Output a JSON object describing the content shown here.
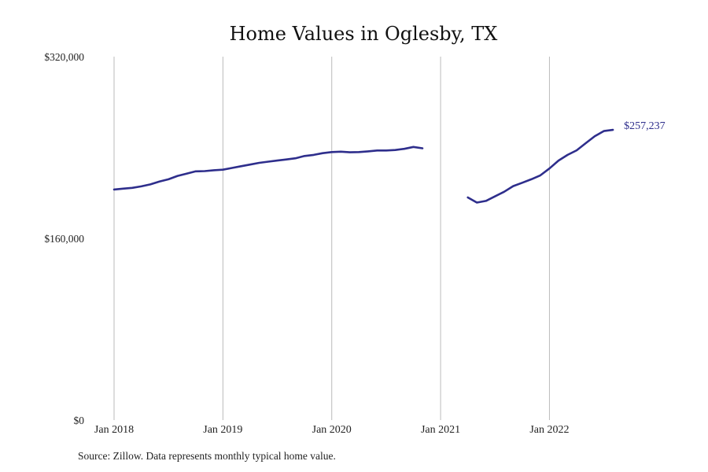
{
  "footer": {
    "source": "Source: Zillow. Data represents monthly typical home value."
  },
  "colors": {
    "line": "#2e2e8c",
    "grid": "#bbbbbb"
  },
  "chart_data": {
    "type": "line",
    "title": "Home Values in Oglesby, TX",
    "xlabel": "",
    "ylabel": "",
    "ylim": [
      0,
      320000
    ],
    "y_ticks": [
      {
        "value": 0,
        "label": "$0"
      },
      {
        "value": 160000,
        "label": "$160,000"
      },
      {
        "value": 320000,
        "label": "$320,000"
      }
    ],
    "x_ticks": [
      {
        "value": "2018-01",
        "label": "Jan 2018"
      },
      {
        "value": "2019-01",
        "label": "Jan 2019"
      },
      {
        "value": "2020-01",
        "label": "Jan 2020"
      },
      {
        "value": "2021-01",
        "label": "Jan 2021"
      },
      {
        "value": "2022-01",
        "label": "Jan 2022"
      }
    ],
    "grid": "vertical",
    "end_label": "$257,237",
    "series": [
      {
        "segments": [
          [
            [
              "2018-01",
              203000
            ],
            [
              "2018-02",
              203800
            ],
            [
              "2018-03",
              204500
            ],
            [
              "2018-04",
              205800
            ],
            [
              "2018-05",
              207500
            ],
            [
              "2018-06",
              210000
            ],
            [
              "2018-07",
              212000
            ],
            [
              "2018-08",
              215000
            ],
            [
              "2018-09",
              217000
            ],
            [
              "2018-10",
              219000
            ],
            [
              "2018-11",
              219200
            ],
            [
              "2018-12",
              220000
            ],
            [
              "2019-01",
              220500
            ],
            [
              "2019-02",
              222000
            ],
            [
              "2019-03",
              223500
            ],
            [
              "2019-04",
              225000
            ],
            [
              "2019-05",
              226500
            ],
            [
              "2019-06",
              227500
            ],
            [
              "2019-07",
              228500
            ],
            [
              "2019-08",
              229500
            ],
            [
              "2019-09",
              230500
            ],
            [
              "2019-10",
              232500
            ],
            [
              "2019-11",
              233500
            ],
            [
              "2019-12",
              235000
            ],
            [
              "2020-01",
              236000
            ],
            [
              "2020-02",
              236300
            ],
            [
              "2020-03",
              235800
            ],
            [
              "2020-04",
              236000
            ],
            [
              "2020-05",
              236600
            ],
            [
              "2020-06",
              237400
            ],
            [
              "2020-07",
              237400
            ],
            [
              "2020-08",
              237800
            ],
            [
              "2020-09",
              238800
            ],
            [
              "2020-10",
              240500
            ],
            [
              "2020-11",
              239300
            ]
          ],
          [
            [
              "2021-04",
              196000
            ],
            [
              "2021-05",
              191500
            ],
            [
              "2021-06",
              193000
            ],
            [
              "2021-07",
              197000
            ],
            [
              "2021-08",
              201000
            ],
            [
              "2021-09",
              206000
            ],
            [
              "2021-10",
              209000
            ],
            [
              "2021-11",
              212000
            ],
            [
              "2021-12",
              215500
            ],
            [
              "2022-01",
              221500
            ],
            [
              "2022-02",
              228500
            ],
            [
              "2022-03",
              233500
            ],
            [
              "2022-04",
              237500
            ],
            [
              "2022-05",
              243800
            ],
            [
              "2022-06",
              250000
            ],
            [
              "2022-07",
              254500
            ],
            [
              "2022-08",
              255500
            ]
          ]
        ]
      }
    ]
  }
}
